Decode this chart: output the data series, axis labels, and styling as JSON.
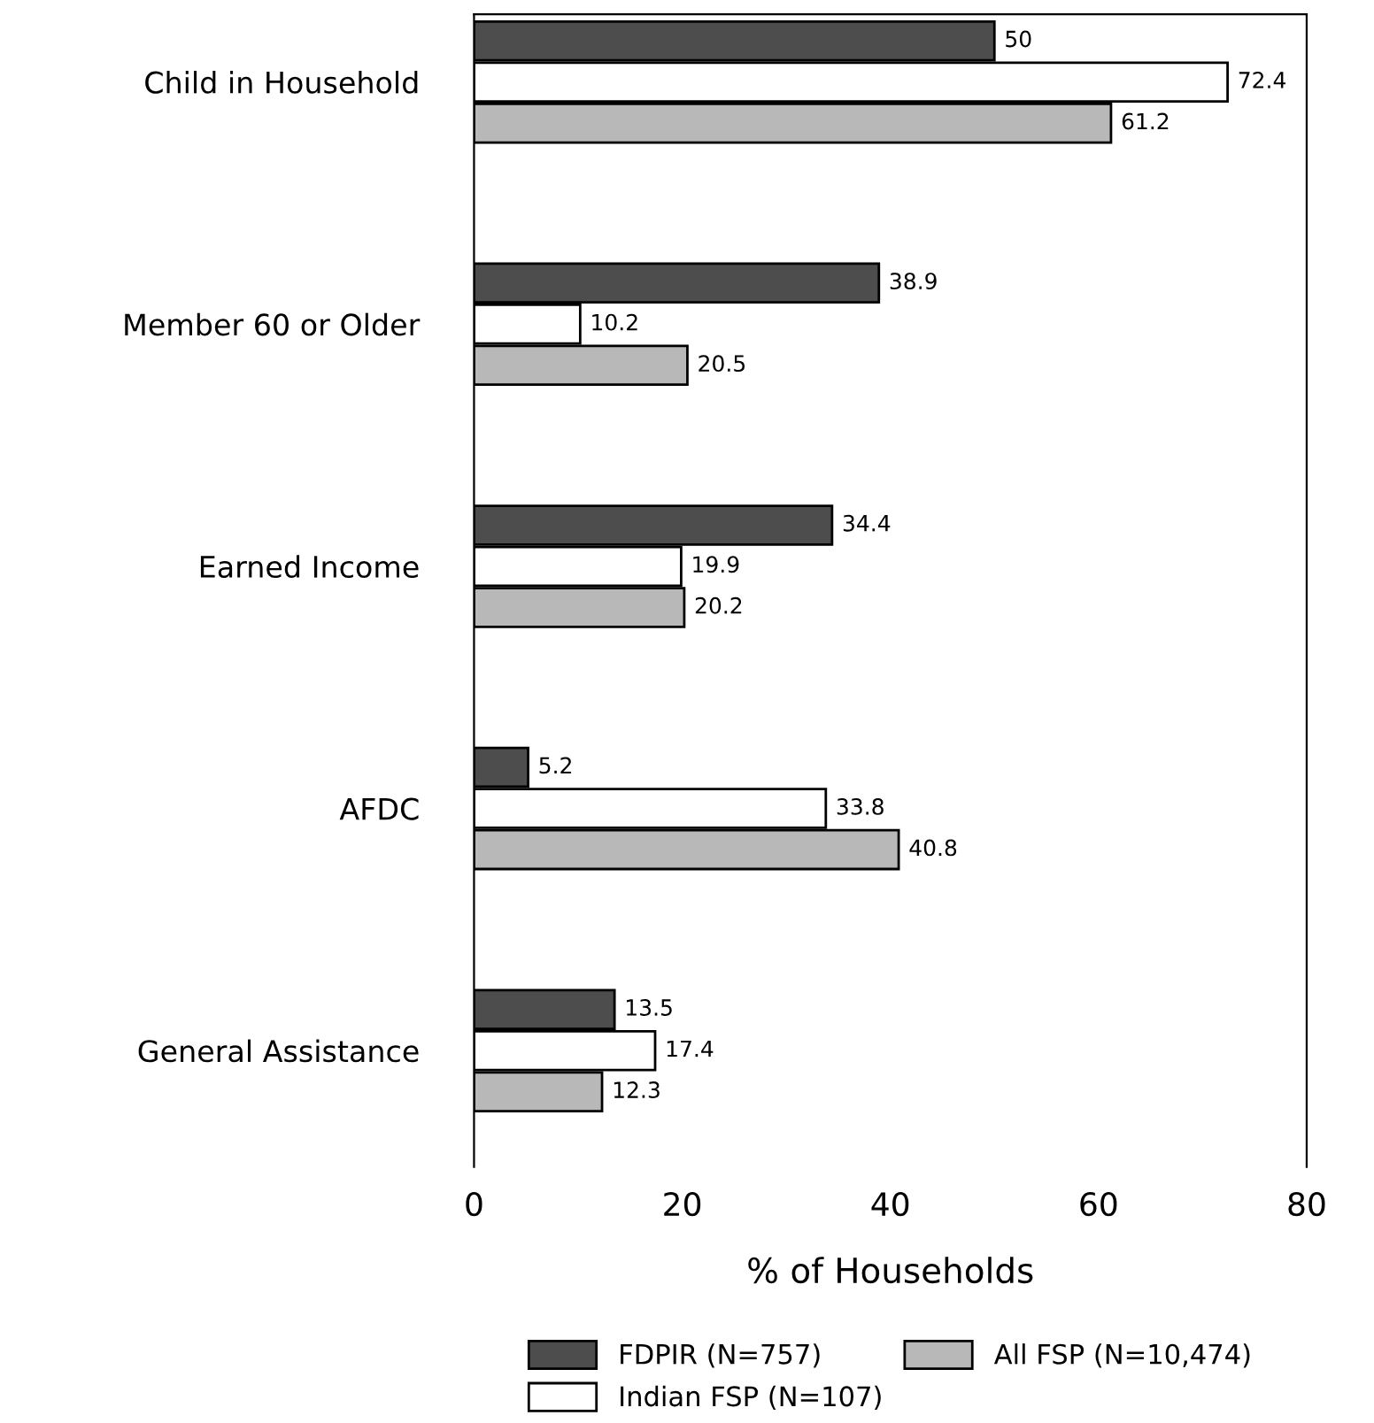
{
  "chart_data": {
    "type": "bar",
    "orientation": "horizontal",
    "categories": [
      "Child in Household",
      "Member 60 or Older",
      "Earned Income",
      "AFDC",
      "General Assistance"
    ],
    "series": [
      {
        "name": "FDPIR (N=757)",
        "color": "#4d4d4d",
        "values": [
          50,
          38.9,
          34.4,
          5.2,
          13.5
        ]
      },
      {
        "name": "Indian FSP (N=107)",
        "color": "#ffffff",
        "values": [
          72.4,
          10.2,
          19.9,
          33.8,
          17.4
        ]
      },
      {
        "name": "All FSP (N=10,474)",
        "color": "#b8b8b8",
        "values": [
          61.2,
          20.5,
          20.2,
          40.8,
          12.3
        ]
      }
    ],
    "xlabel": "% of Households",
    "xlim": [
      0,
      80
    ],
    "xticks": [
      0,
      20,
      40,
      60,
      80
    ],
    "data_labels": true,
    "grid": false,
    "legend": "bottom"
  }
}
